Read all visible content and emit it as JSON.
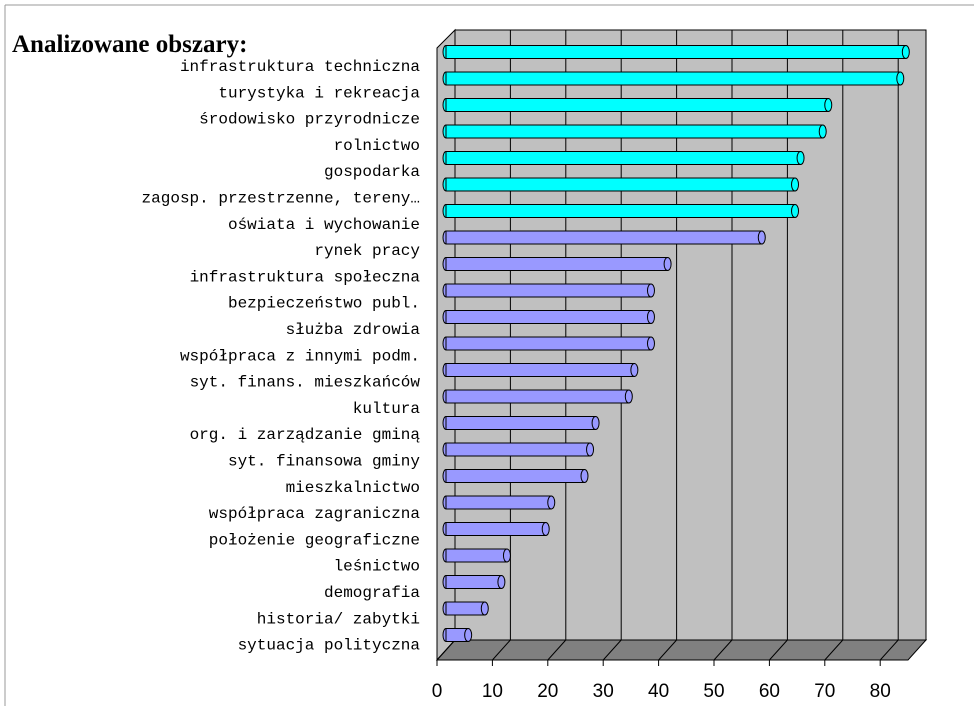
{
  "chart_data": {
    "type": "bar3d_horizontal",
    "title": "Analizowane obszary:",
    "categories": [
      "infrastruktura techniczna",
      "turystyka i rekreacja",
      "środowisko przyrodnicze",
      "rolnictwo",
      "gospodarka",
      "zagosp. przestrzenne, tereny…",
      "oświata i wychowanie",
      "rynek pracy",
      "infrastruktura społeczna",
      "bezpieczeństwo publ.",
      "służba zdrowia",
      "współpraca z innymi podm.",
      "syt. finans. mieszkańców",
      "kultura",
      "org. i zarządzanie gminą",
      "syt. finansowa gminy",
      "mieszkalnictwo",
      "współpraca zagraniczna",
      "położenie geograficzne",
      "leśnictwo",
      "demografia",
      "historia/ zabytki",
      "sytuacja polityczna"
    ],
    "values": [
      83,
      82,
      69,
      68,
      64,
      63,
      63,
      57,
      40,
      37,
      37,
      37,
      34,
      33,
      27,
      26,
      25,
      19,
      18,
      11,
      10,
      7,
      4
    ],
    "colors": [
      "#00ffff",
      "#00ffff",
      "#00ffff",
      "#00ffff",
      "#00ffff",
      "#00ffff",
      "#00ffff",
      "#9999ff",
      "#9999ff",
      "#9999ff",
      "#9999ff",
      "#9999ff",
      "#9999ff",
      "#9999ff",
      "#9999ff",
      "#9999ff",
      "#9999ff",
      "#9999ff",
      "#9999ff",
      "#9999ff",
      "#9999ff",
      "#9999ff",
      "#9999ff"
    ],
    "xlim": [
      0,
      85
    ],
    "xticks": [
      0,
      10,
      20,
      30,
      40,
      50,
      60,
      70,
      80
    ],
    "grid": true
  }
}
